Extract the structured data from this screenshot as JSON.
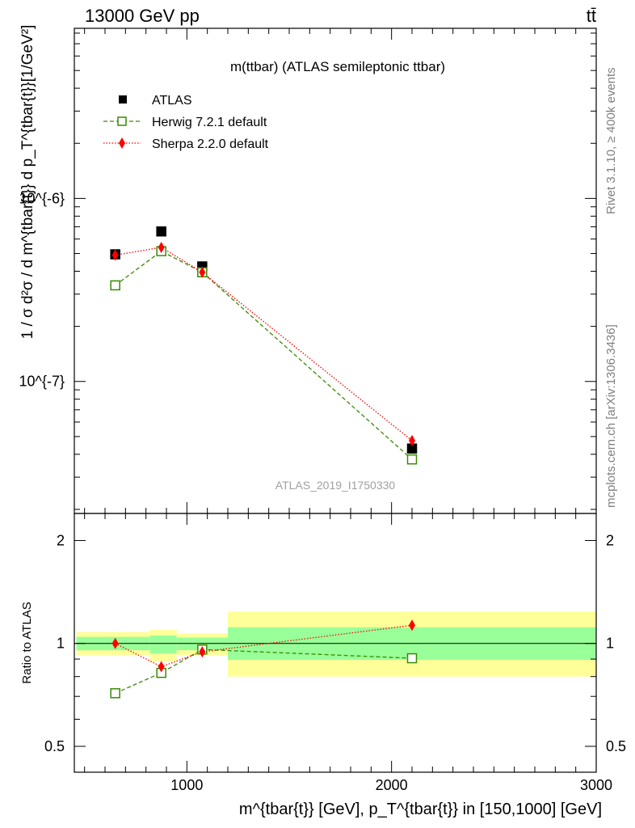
{
  "header": {
    "left": "13000 GeV pp",
    "right": "tt̄"
  },
  "side_labels": {
    "rivet": "Rivet 3.1.10, ≥ 400k events",
    "mcplots": "mcplots.cern.ch [arXiv:1306.3436]"
  },
  "chart_data": [
    {
      "type": "scatter",
      "title": "m(ttbar) (ATLAS semileptonic ttbar)",
      "analysis_tag": "ATLAS_2019_I1750330",
      "ylabel": "1 / σ d²σ / d m^{tbar{t}} d p_T^{tbar{t}}[1/GeV²]",
      "yscale": "log",
      "ylim": [
        1.9e-08,
        8.5e-06
      ],
      "xlim": [
        450,
        3000
      ],
      "grid": false,
      "legend_position": "top-left",
      "y_tick_labels": [
        "10^{-7}",
        "10^{-6}"
      ],
      "series": [
        {
          "name": "ATLAS",
          "marker": "filled-square",
          "color": "#000000",
          "x": [
            650,
            875,
            1075,
            2100
          ],
          "y": [
            4.95e-07,
            6.6e-07,
            4.25e-07,
            4.3e-08
          ]
        },
        {
          "name": "Herwig 7.2.1 default",
          "marker": "open-square",
          "line": "dashed",
          "color": "#3a8a00",
          "x": [
            650,
            875,
            1075,
            2100
          ],
          "y": [
            3.35e-07,
            5.15e-07,
            3.95e-07,
            3.75e-08
          ]
        },
        {
          "name": "Sherpa 2.2.0 default",
          "marker": "diamond",
          "line": "dotted",
          "color": "#ff0000",
          "x": [
            650,
            875,
            1075,
            2100
          ],
          "y": [
            4.9e-07,
            5.4e-07,
            3.95e-07,
            4.75e-08
          ]
        }
      ]
    },
    {
      "type": "scatter",
      "ylabel": "Ratio to ATLAS",
      "xlabel": "m^{tbar{t}} [GeV], p_T^{tbar{t}} in [150,1000] [GeV]",
      "yscale": "log",
      "ylim": [
        0.42,
        2.4
      ],
      "xlim": [
        450,
        3000
      ],
      "x_tick_labels": [
        "1000",
        "2000",
        "3000"
      ],
      "y_tick_labels": [
        "0.5",
        "1",
        "2"
      ],
      "bands": [
        {
          "x": [
            460,
            820
          ],
          "yellow": [
            0.925,
            1.08
          ],
          "green": [
            0.955,
            1.045
          ]
        },
        {
          "x": [
            820,
            950
          ],
          "yellow": [
            0.885,
            1.095
          ],
          "green": [
            0.935,
            1.055
          ]
        },
        {
          "x": [
            950,
            1200
          ],
          "yellow": [
            0.925,
            1.07
          ],
          "green": [
            0.955,
            1.04
          ]
        },
        {
          "x": [
            1200,
            3000
          ],
          "yellow": [
            0.8,
            1.24
          ],
          "green": [
            0.895,
            1.115
          ]
        }
      ],
      "series": [
        {
          "name": "Herwig 7.2.1 default",
          "color": "#3a8a00",
          "x": [
            650,
            875,
            1075,
            2100
          ],
          "y": [
            0.715,
            0.82,
            0.96,
            0.905
          ]
        },
        {
          "name": "Sherpa 2.2.0 default",
          "color": "#ff0000",
          "x": [
            650,
            875,
            1075,
            2100
          ],
          "y": [
            1.0,
            0.855,
            0.945,
            1.13
          ]
        }
      ]
    }
  ]
}
